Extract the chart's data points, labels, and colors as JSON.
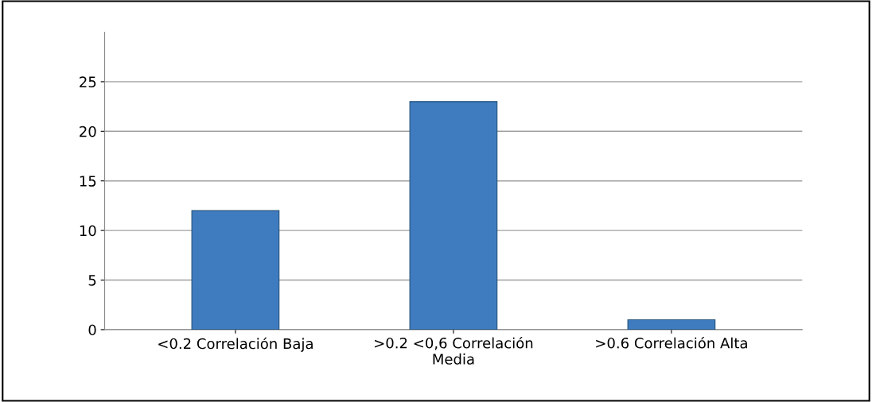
{
  "chart_data": {
    "type": "bar",
    "categories": [
      "<0.2 Correlación Baja",
      ">0.2 <0,6 Correlación\nMedia",
      ">0.6 Correlación Alta"
    ],
    "values": [
      12,
      23,
      1
    ],
    "color": "#3f7cbf",
    "ylim": [
      0,
      30
    ],
    "yticks": [
      0,
      5,
      10,
      15,
      20,
      25
    ],
    "grid": "y",
    "legend": false
  }
}
